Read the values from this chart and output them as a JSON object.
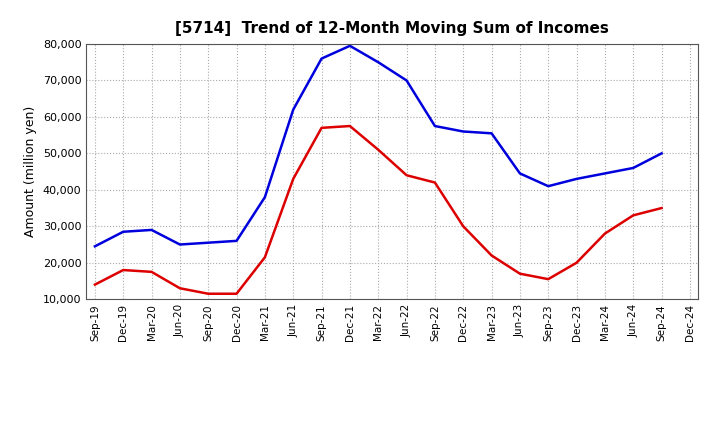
{
  "title": "[5714]  Trend of 12-Month Moving Sum of Incomes",
  "ylabel": "Amount (million yen)",
  "background_color": "#ffffff",
  "plot_bg_color": "#ffffff",
  "grid_color": "#aaaaaa",
  "x_labels": [
    "Sep-19",
    "Dec-19",
    "Mar-20",
    "Jun-20",
    "Sep-20",
    "Dec-20",
    "Mar-21",
    "Jun-21",
    "Sep-21",
    "Dec-21",
    "Mar-22",
    "Jun-22",
    "Sep-22",
    "Dec-22",
    "Mar-23",
    "Jun-23",
    "Sep-23",
    "Dec-23",
    "Mar-24",
    "Jun-24",
    "Sep-24",
    "Dec-24"
  ],
  "ordinary_income": [
    24500,
    28500,
    29000,
    25000,
    25500,
    26000,
    38000,
    62000,
    76000,
    79500,
    75000,
    70000,
    57500,
    56000,
    55500,
    44500,
    41000,
    43000,
    44500,
    46000,
    50000,
    null
  ],
  "net_income": [
    14000,
    18000,
    17500,
    13000,
    11500,
    11500,
    21500,
    43000,
    57000,
    57500,
    51000,
    44000,
    42000,
    30000,
    22000,
    17000,
    15500,
    20000,
    28000,
    33000,
    35000,
    null
  ],
  "ylim": [
    10000,
    80000
  ],
  "yticks": [
    10000,
    20000,
    30000,
    40000,
    50000,
    60000,
    70000,
    80000
  ],
  "ordinary_color": "#0000dd",
  "net_color": "#dd0000",
  "line_width": 1.8
}
